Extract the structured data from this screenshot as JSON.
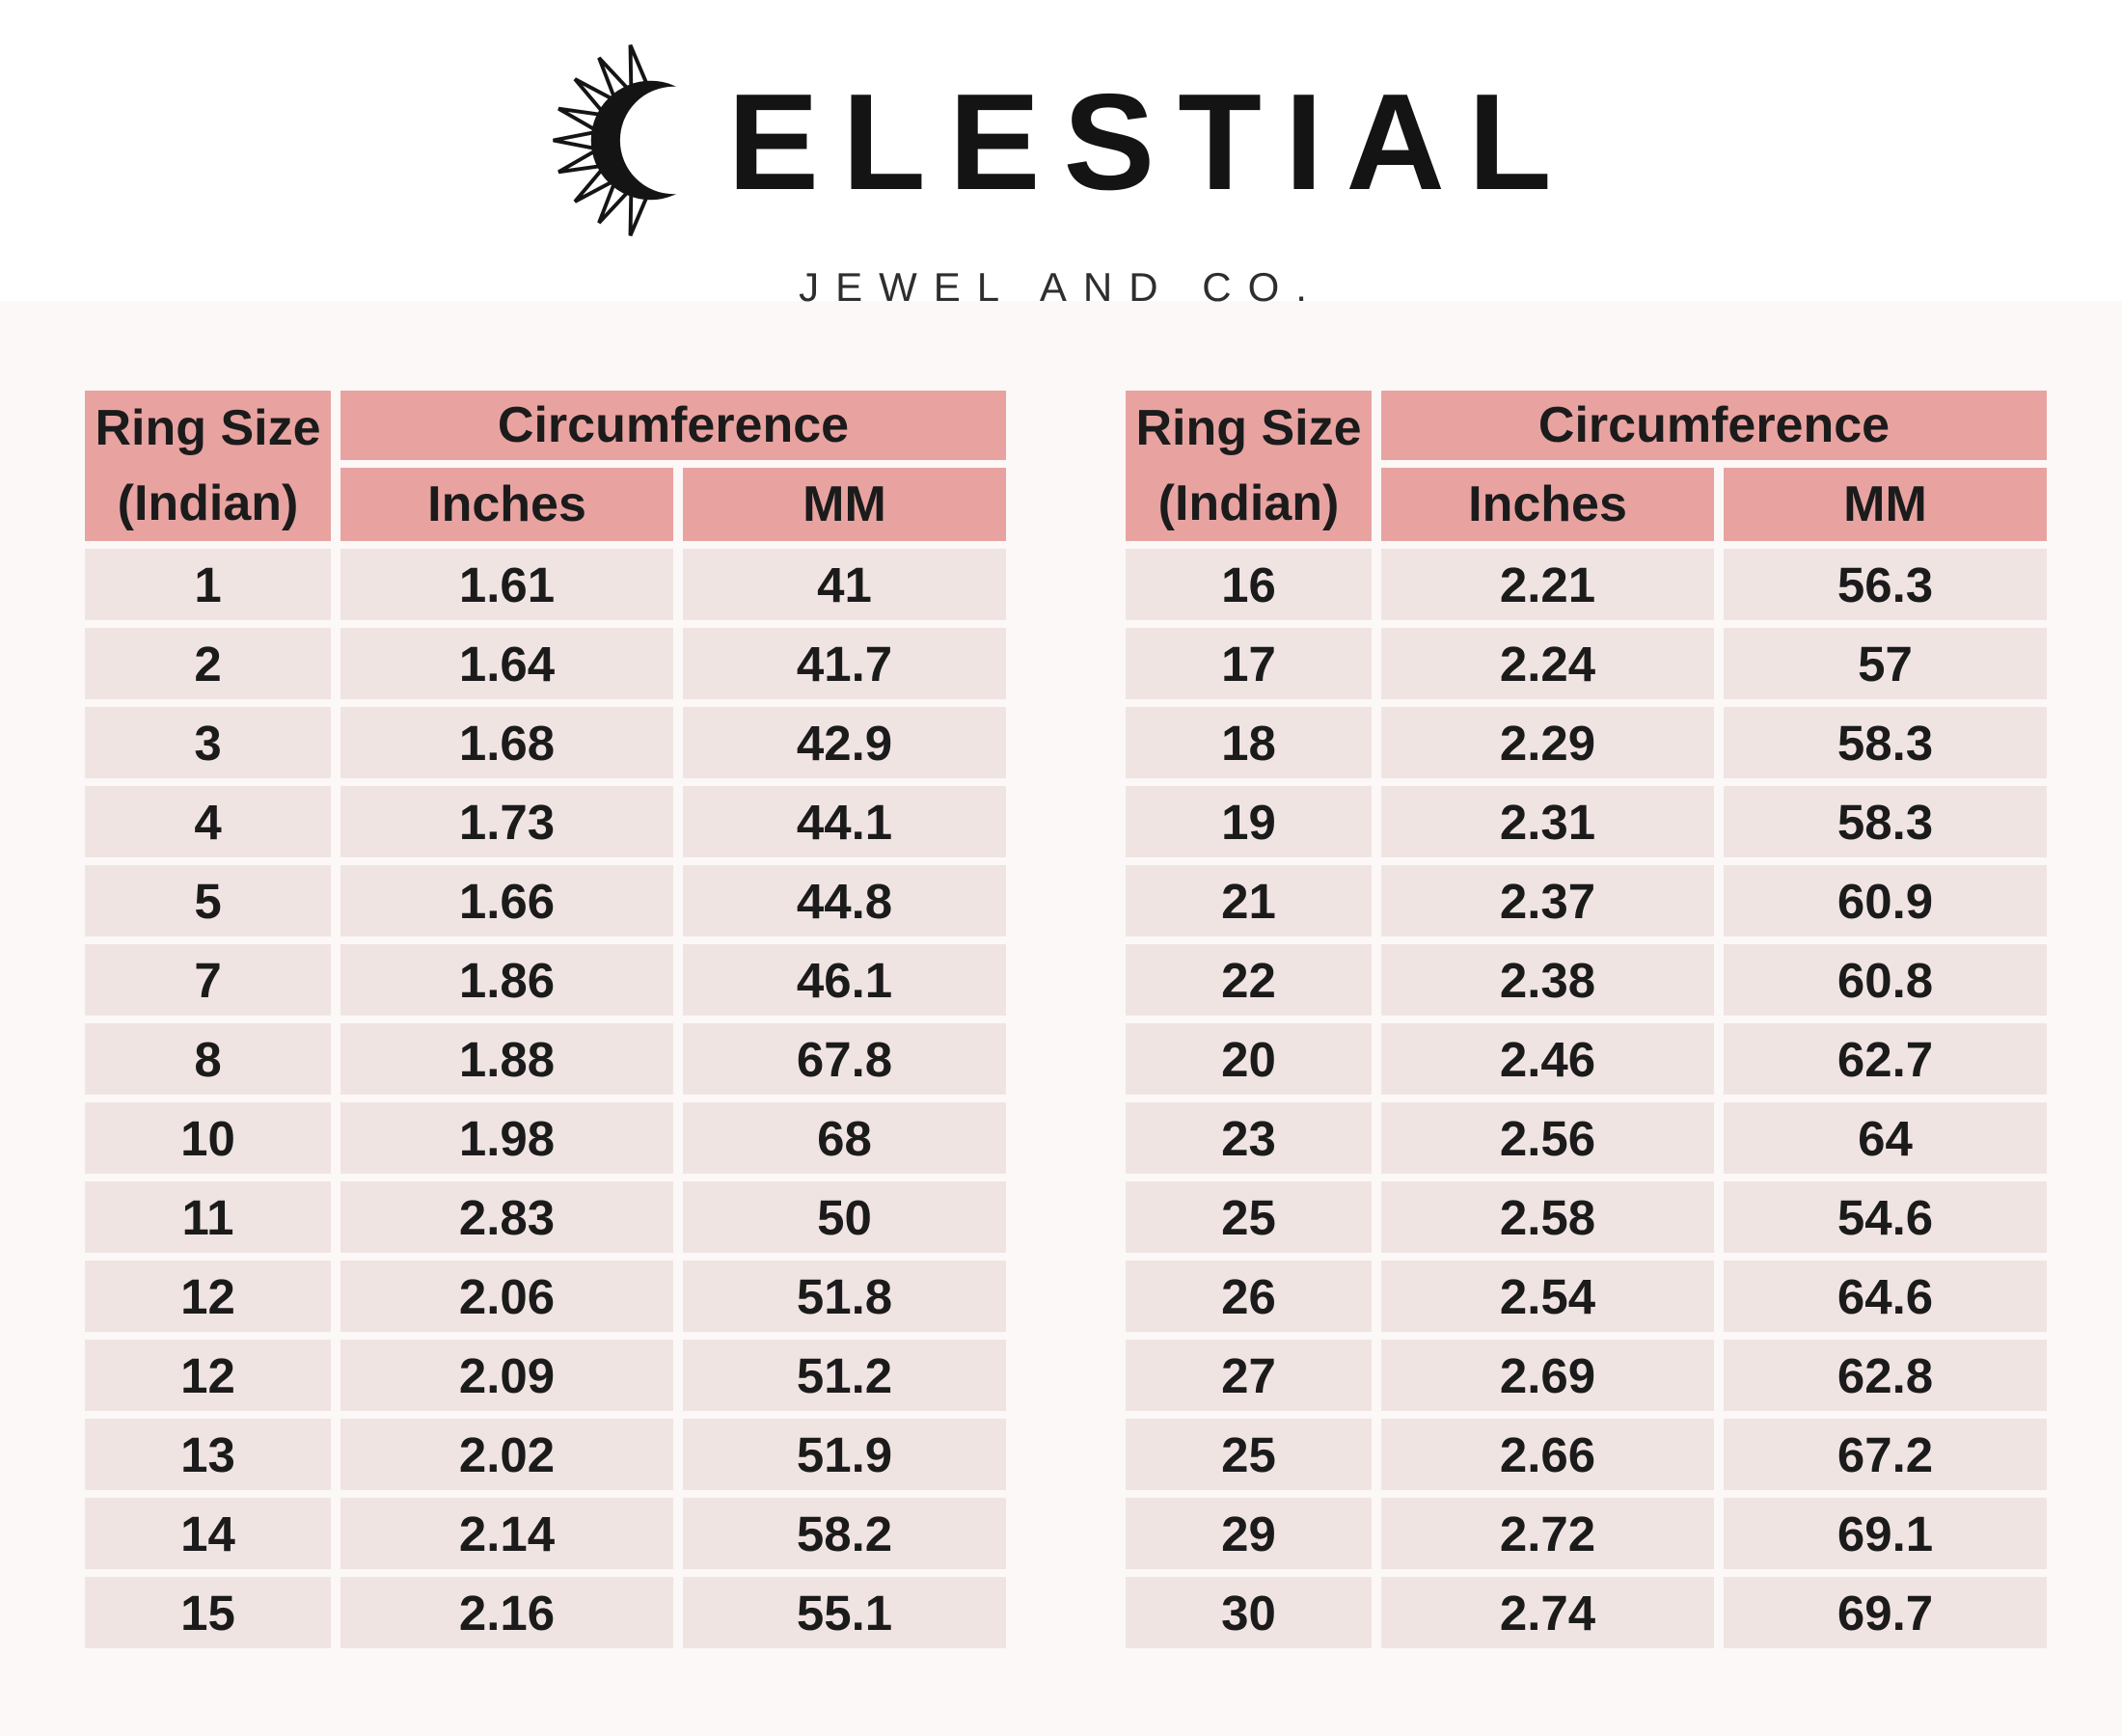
{
  "logo": {
    "brand": "CELESTIAL",
    "brand_after_icon": "ELESTIAL",
    "tagline": "JEWEL AND CO.",
    "icon": "sun-crescent-icon"
  },
  "table_header": {
    "ring_size_line1": "Ring Size",
    "ring_size_line2": "(Indian)",
    "circumference": "Circumference",
    "inches": "Inches",
    "mm": "MM"
  },
  "tables": {
    "left": {
      "rows": [
        [
          "1",
          "1.61",
          "41"
        ],
        [
          "2",
          "1.64",
          "41.7"
        ],
        [
          "3",
          "1.68",
          "42.9"
        ],
        [
          "4",
          "1.73",
          "44.1"
        ],
        [
          "5",
          "1.66",
          "44.8"
        ],
        [
          "7",
          "1.86",
          "46.1"
        ],
        [
          "8",
          "1.88",
          "67.8"
        ],
        [
          "10",
          "1.98",
          "68"
        ],
        [
          "11",
          "2.83",
          "50"
        ],
        [
          "12",
          "2.06",
          "51.8"
        ],
        [
          "12",
          "2.09",
          "51.2"
        ],
        [
          "13",
          "2.02",
          "51.9"
        ],
        [
          "14",
          "2.14",
          "58.2"
        ],
        [
          "15",
          "2.16",
          "55.1"
        ]
      ]
    },
    "right": {
      "rows": [
        [
          "16",
          "2.21",
          "56.3"
        ],
        [
          "17",
          "2.24",
          "57"
        ],
        [
          "18",
          "2.29",
          "58.3"
        ],
        [
          "19",
          "2.31",
          "58.3"
        ],
        [
          "21",
          "2.37",
          "60.9"
        ],
        [
          "22",
          "2.38",
          "60.8"
        ],
        [
          "20",
          "2.46",
          "62.7"
        ],
        [
          "23",
          "2.56",
          "64"
        ],
        [
          "25",
          "2.58",
          "54.6"
        ],
        [
          "26",
          "2.54",
          "64.6"
        ],
        [
          "27",
          "2.69",
          "62.8"
        ],
        [
          "25",
          "2.66",
          "67.2"
        ],
        [
          "29",
          "2.72",
          "69.1"
        ],
        [
          "30",
          "2.74",
          "69.7"
        ]
      ]
    }
  },
  "colors": {
    "header_bg": "#e8a3a1",
    "row_bg": "#f0e4e3",
    "gap": "#ffffff",
    "text": "#1b1b1b"
  }
}
